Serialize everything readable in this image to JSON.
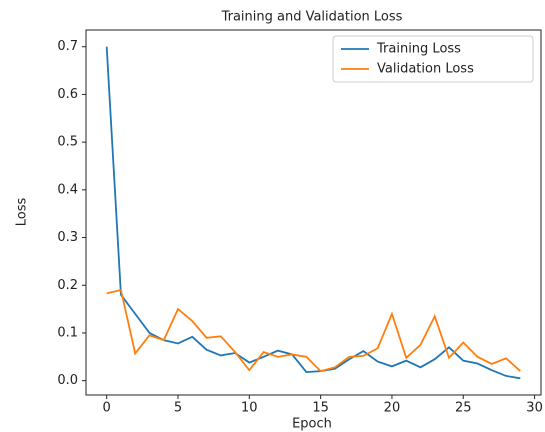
{
  "chart_data": {
    "type": "line",
    "title": "Training and Validation Loss",
    "x_label": "Epoch",
    "y_label": "Loss",
    "x": [
      0,
      1,
      2,
      3,
      4,
      5,
      6,
      7,
      8,
      9,
      10,
      11,
      12,
      13,
      14,
      15,
      16,
      17,
      18,
      19,
      20,
      21,
      22,
      23,
      24,
      25,
      26,
      27,
      28,
      29
    ],
    "series": [
      {
        "name": "Training Loss",
        "color": "#1f77b4",
        "values": [
          0.7,
          0.18,
          0.14,
          0.1,
          0.085,
          0.078,
          0.092,
          0.065,
          0.053,
          0.058,
          0.038,
          0.05,
          0.063,
          0.055,
          0.018,
          0.02,
          0.025,
          0.045,
          0.062,
          0.04,
          0.03,
          0.042,
          0.028,
          0.045,
          0.07,
          0.042,
          0.036,
          0.022,
          0.01,
          0.005
        ]
      },
      {
        "name": "Validation Loss",
        "color": "#ff7f0e",
        "values": [
          0.183,
          0.19,
          0.057,
          0.095,
          0.085,
          0.15,
          0.125,
          0.09,
          0.093,
          0.06,
          0.022,
          0.06,
          0.05,
          0.055,
          0.05,
          0.02,
          0.028,
          0.05,
          0.052,
          0.068,
          0.14,
          0.048,
          0.075,
          0.135,
          0.048,
          0.08,
          0.05,
          0.035,
          0.047,
          0.02
        ]
      }
    ],
    "xlim": [
      -1.45,
      30.45
    ],
    "xticks": [
      0,
      5,
      10,
      15,
      20,
      25,
      30
    ],
    "ylim": [
      -0.03,
      0.735
    ],
    "yticks": [
      {
        "value": 0,
        "label": "0.0"
      },
      0.1,
      0.2,
      0.3,
      0.4,
      0.5,
      0.6,
      0.7
    ],
    "legend": "upper right",
    "grid": false
  }
}
